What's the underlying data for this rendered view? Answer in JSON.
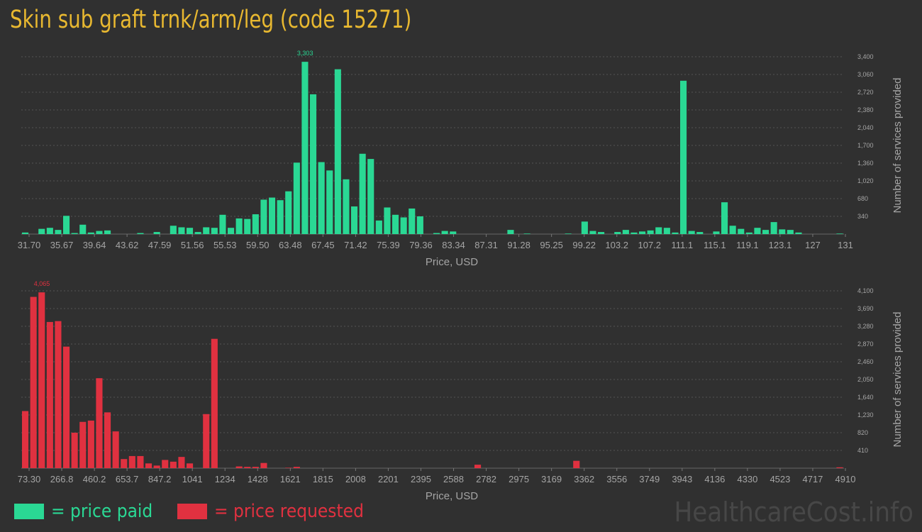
{
  "title": "Skin sub graft trnk/arm/leg (code 15271)",
  "legend": {
    "paid_label": "= price paid",
    "requested_label": "= price requested",
    "paid_color": "#2ad894",
    "requested_color": "#e03140"
  },
  "watermark": "HealthcareCost.info",
  "chart_data": [
    {
      "type": "bar",
      "series_role": "price paid",
      "color": "#2ad894",
      "xlabel": "Price, USD",
      "ylabel": "Number of services provided",
      "ylim": [
        0,
        3400
      ],
      "yticks": [
        "340",
        "680",
        "1,020",
        "1,360",
        "1,700",
        "2,040",
        "2,380",
        "2,720",
        "3,060",
        "3,400"
      ],
      "xticks": [
        "31.70",
        "35.67",
        "39.64",
        "43.62",
        "47.59",
        "51.56",
        "55.53",
        "59.50",
        "63.48",
        "67.45",
        "71.42",
        "75.39",
        "79.36",
        "83.34",
        "87.31",
        "91.28",
        "95.25",
        "99.22",
        "103.2",
        "107.2",
        "111.1",
        "115.1",
        "119.1",
        "123.1",
        "127",
        "131"
      ],
      "peak_label": "3,303",
      "values": [
        30,
        0,
        100,
        120,
        80,
        350,
        20,
        180,
        30,
        60,
        70,
        0,
        0,
        0,
        20,
        0,
        40,
        0,
        160,
        130,
        120,
        40,
        130,
        120,
        370,
        120,
        300,
        290,
        380,
        660,
        700,
        650,
        820,
        1370,
        3303,
        2680,
        1380,
        1220,
        3160,
        1050,
        530,
        1540,
        1440,
        260,
        510,
        370,
        320,
        490,
        340,
        0,
        20,
        60,
        50,
        0,
        0,
        0,
        0,
        0,
        0,
        80,
        0,
        10,
        0,
        0,
        0,
        0,
        10,
        0,
        240,
        60,
        40,
        0,
        40,
        80,
        30,
        50,
        70,
        130,
        120,
        30,
        2940,
        60,
        40,
        0,
        50,
        610,
        160,
        100,
        30,
        120,
        80,
        230,
        90,
        80,
        30,
        0,
        0,
        0,
        0,
        10
      ]
    },
    {
      "type": "bar",
      "series_role": "price requested",
      "color": "#e03140",
      "xlabel": "Price, USD",
      "ylabel": "Number of services provided",
      "ylim": [
        0,
        4100
      ],
      "yticks": [
        "410",
        "820",
        "1,230",
        "1,640",
        "2,050",
        "2,460",
        "2,870",
        "3,280",
        "3,690",
        "4,100"
      ],
      "xticks": [
        "73.30",
        "266.8",
        "460.2",
        "653.7",
        "847.2",
        "1041",
        "1234",
        "1428",
        "1621",
        "1815",
        "2008",
        "2201",
        "2395",
        "2588",
        "2782",
        "2975",
        "3169",
        "3362",
        "3556",
        "3749",
        "3943",
        "4136",
        "4330",
        "4523",
        "4717",
        "4910"
      ],
      "peak_label": "4,065",
      "values": [
        1320,
        3960,
        4065,
        3380,
        3400,
        2810,
        820,
        1070,
        1100,
        2080,
        1290,
        850,
        210,
        280,
        280,
        110,
        60,
        190,
        150,
        260,
        110,
        0,
        1250,
        2990,
        0,
        0,
        40,
        30,
        30,
        120,
        0,
        0,
        10,
        30,
        0,
        0,
        0,
        0,
        0,
        0,
        0,
        0,
        0,
        0,
        0,
        0,
        0,
        0,
        0,
        0,
        0,
        0,
        0,
        0,
        0,
        80,
        0,
        0,
        0,
        0,
        0,
        0,
        0,
        0,
        0,
        0,
        0,
        170,
        0,
        0,
        0,
        0,
        0,
        0,
        0,
        0,
        0,
        0,
        0,
        0,
        0,
        0,
        0,
        0,
        0,
        0,
        0,
        0,
        0,
        0,
        0,
        0,
        0,
        0,
        0,
        0,
        0,
        0,
        0,
        20
      ]
    }
  ]
}
